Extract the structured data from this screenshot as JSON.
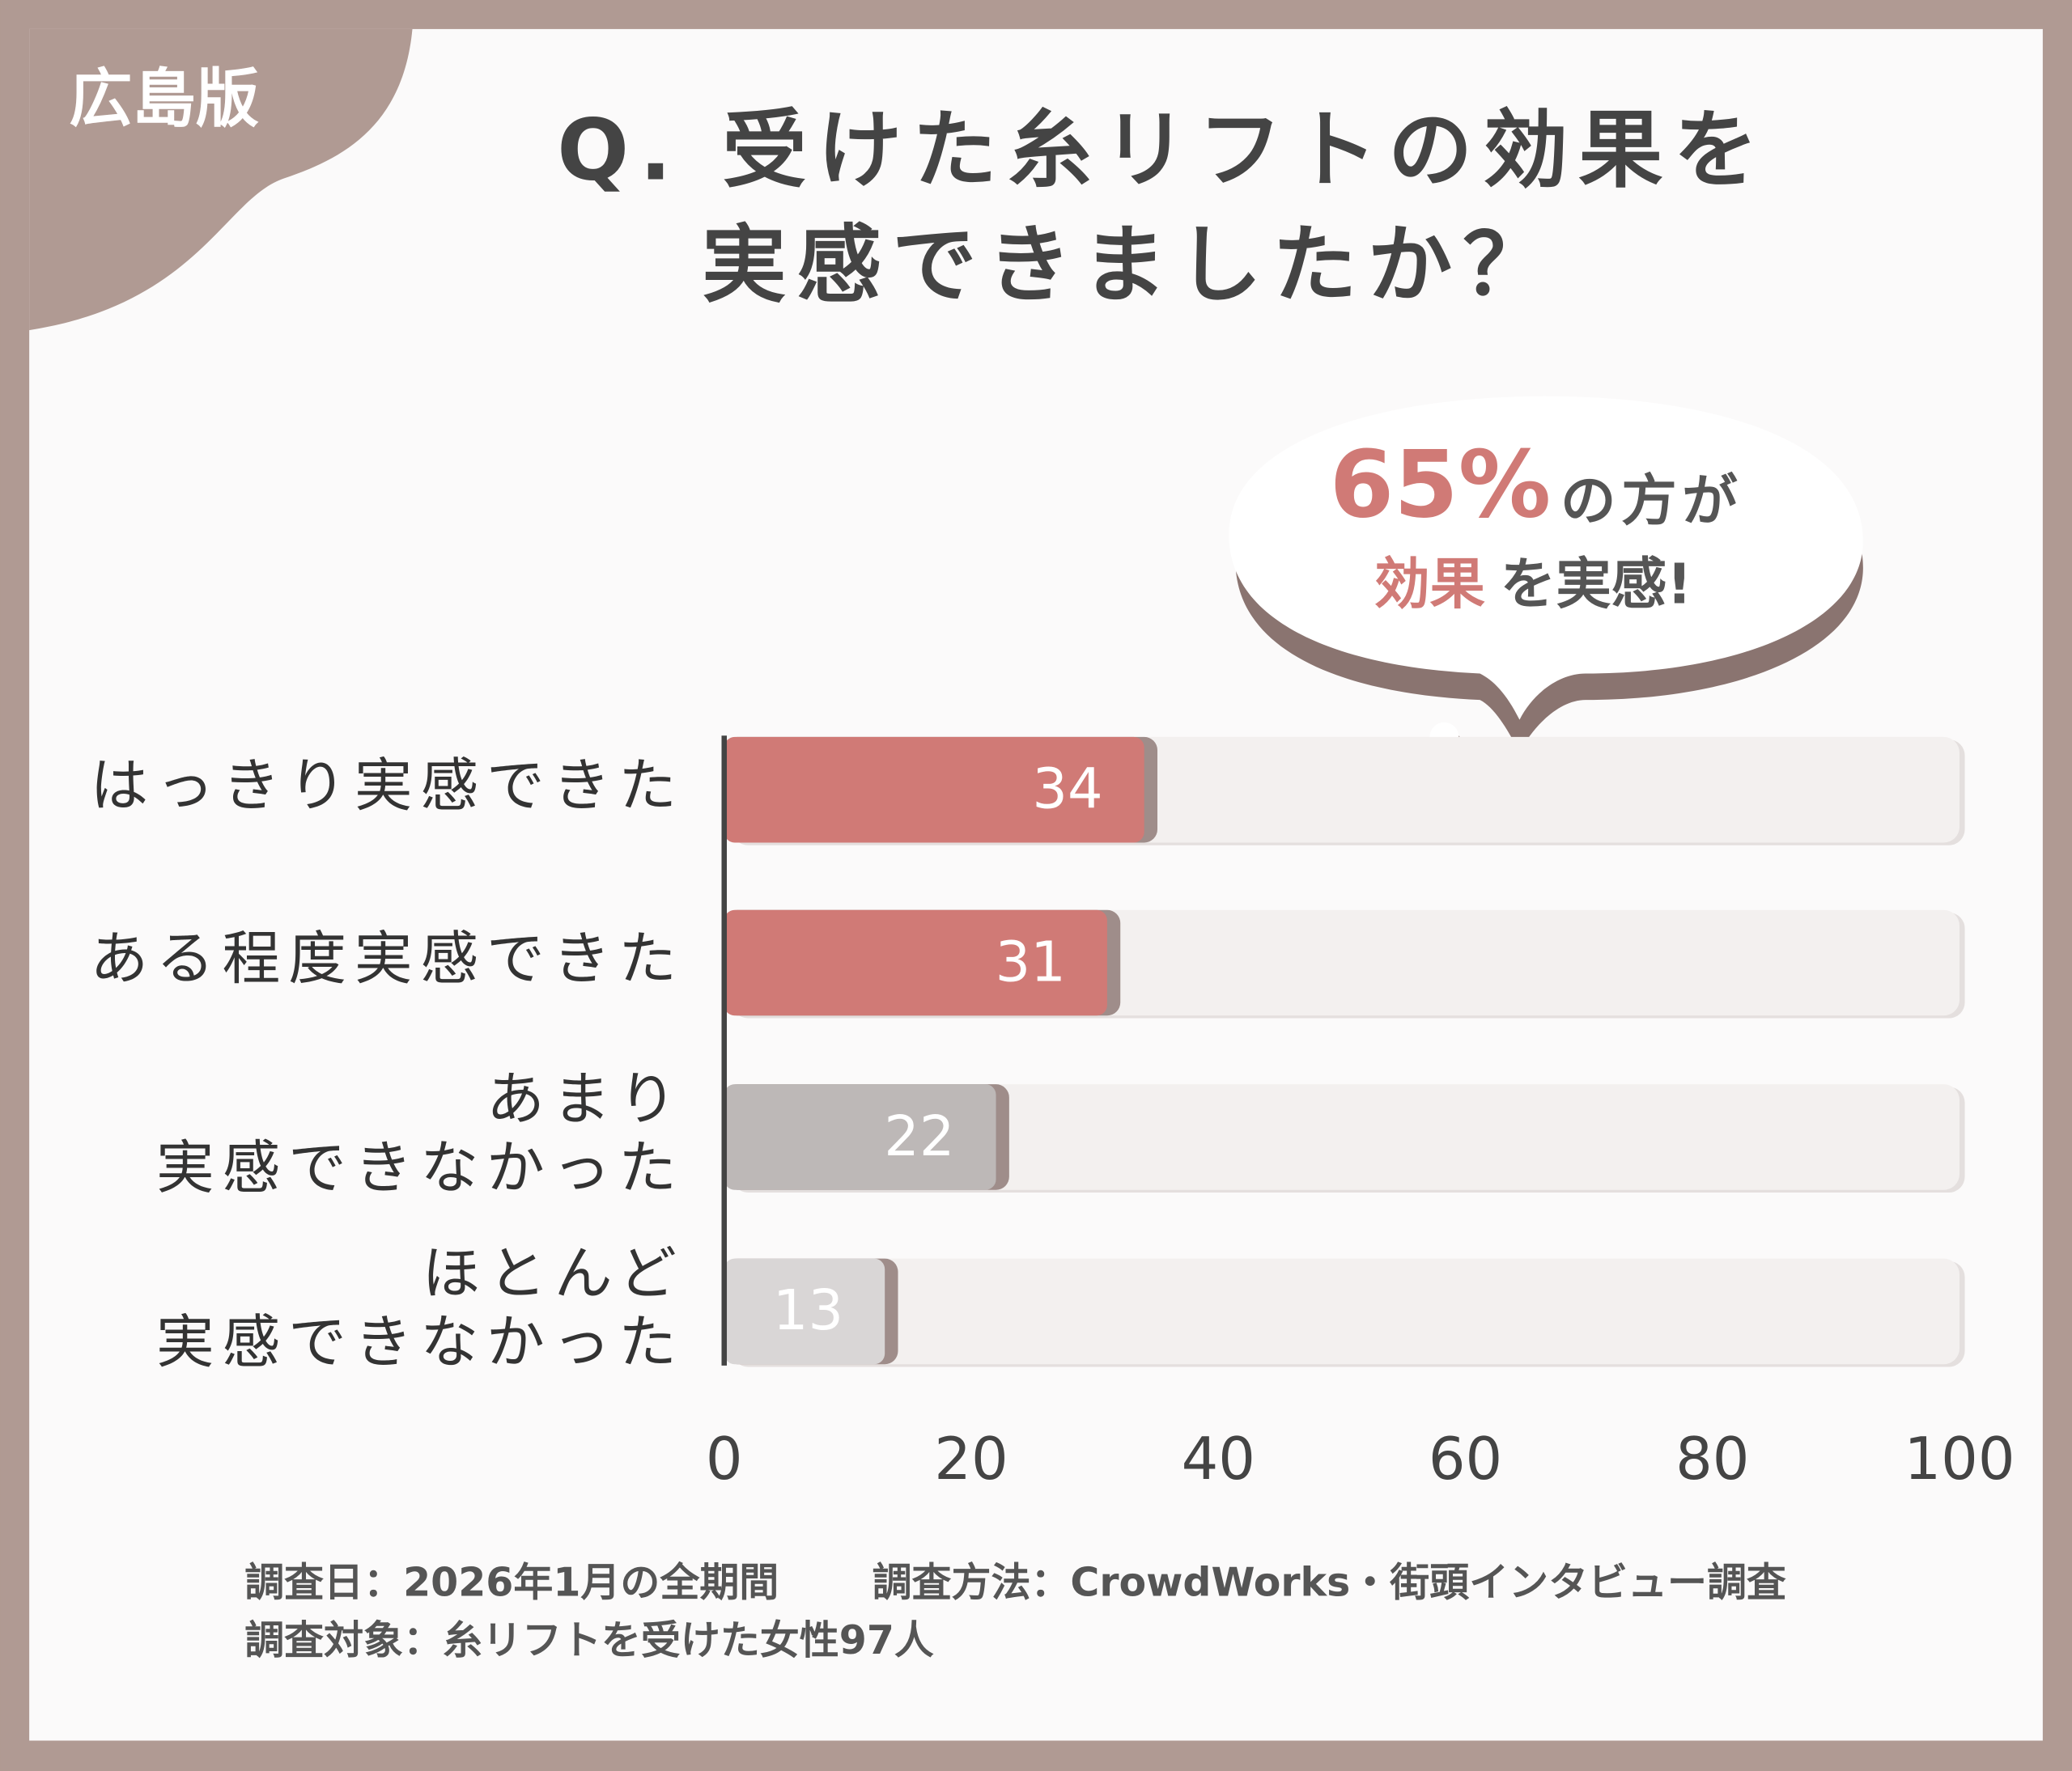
{
  "badge": "広島版",
  "chart_data": {
    "type": "hbar",
    "title": [
      "Q. 受けた糸リフトの効果を",
      "実感できましたか？"
    ],
    "categories": [
      "はっきり実感できた",
      "ある程度実感できた",
      "あまり\n実感できなかった",
      "ほとんど\n実感できなかった"
    ],
    "values": [
      34,
      31,
      22,
      13
    ],
    "colors": [
      "#d07a76",
      "#d07a76",
      "#bdb8b7",
      "#d9d6d6"
    ],
    "track_color": "#f3f0ef",
    "xlim": [
      0,
      100
    ],
    "xticks": [
      0,
      20,
      40,
      60,
      80,
      100
    ],
    "callout": {
      "highlight_1": "65%",
      "text_1": "の方が",
      "highlight_2": "効果",
      "text_2": "を実感!"
    }
  },
  "footnotes": [
    "調査日：2026年1月の全期間",
    "調査方法：CrowdWorks・街頭インタビュー調査",
    "調査対象：糸リフトを受けた女性97人"
  ]
}
